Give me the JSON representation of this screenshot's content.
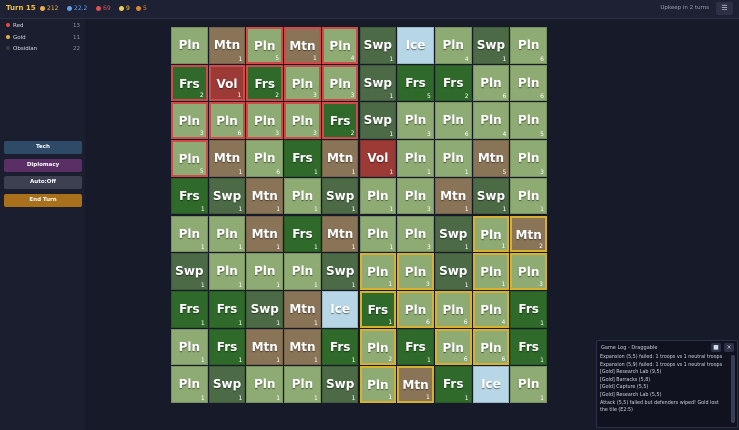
{
  "header": {
    "turn": "Turn 15",
    "resources": [
      {
        "value": "212",
        "color": "#f0b040"
      },
      {
        "value": "22.2",
        "color": "#60a0f0"
      },
      {
        "value": "69",
        "color": "#e05050"
      },
      {
        "value": "9",
        "color": "#f0d040"
      },
      {
        "value": "5",
        "color": "#e08a30"
      }
    ],
    "upkeep": "Upkeep in 2 turns"
  },
  "players": [
    {
      "name": "Red",
      "count": "13",
      "color": "#e04848"
    },
    {
      "name": "Gold",
      "count": "11",
      "color": "#e0b040"
    },
    {
      "name": "Obsidian",
      "count": "22",
      "color": "#3a3a44"
    }
  ],
  "buttons": [
    {
      "label": "Tech",
      "color": "#2f4a66"
    },
    {
      "label": "Diplomacy",
      "color": "#5a2f66"
    },
    {
      "label": "Auto:Off",
      "color": "#3c4050"
    },
    {
      "label": "End Turn",
      "color": "#a8701a"
    }
  ],
  "grid": {
    "rows": [
      [
        {
          "terrain": "Pln",
          "troops": null,
          "owner": null
        },
        {
          "terrain": "Mtn",
          "troops": "1",
          "owner": null
        },
        {
          "terrain": "Pln",
          "troops": "5",
          "owner": "red"
        },
        {
          "terrain": "Mtn",
          "troops": "1",
          "owner": "red"
        },
        {
          "terrain": "Pln",
          "troops": "4",
          "owner": "red"
        },
        {
          "terrain": "Swp",
          "troops": "1",
          "owner": null
        },
        {
          "terrain": "Ice",
          "troops": null,
          "owner": null
        },
        {
          "terrain": "Pln",
          "troops": "4",
          "owner": null
        },
        {
          "terrain": "Swp",
          "troops": "1",
          "owner": null
        },
        {
          "terrain": "Pln",
          "troops": "6",
          "owner": null
        }
      ],
      [
        {
          "terrain": "Frs",
          "troops": "2",
          "owner": "red"
        },
        {
          "terrain": "Vol",
          "troops": "1",
          "owner": "red"
        },
        {
          "terrain": "Frs",
          "troops": "2",
          "owner": "red"
        },
        {
          "terrain": "Pln",
          "troops": "3",
          "owner": "red"
        },
        {
          "terrain": "Pln",
          "troops": "3",
          "owner": "red"
        },
        {
          "terrain": "Swp",
          "troops": "1",
          "owner": null
        },
        {
          "terrain": "Frs",
          "troops": "5",
          "owner": null
        },
        {
          "terrain": "Frs",
          "troops": "2",
          "owner": null
        },
        {
          "terrain": "Pln",
          "troops": "6",
          "owner": null
        },
        {
          "terrain": "Pln",
          "troops": "6",
          "owner": null
        }
      ],
      [
        {
          "terrain": "Pln",
          "troops": "3",
          "owner": "red"
        },
        {
          "terrain": "Pln",
          "troops": "6",
          "owner": "red"
        },
        {
          "terrain": "Pln",
          "troops": "3",
          "owner": "red"
        },
        {
          "terrain": "Pln",
          "troops": "3",
          "owner": "red"
        },
        {
          "terrain": "Frs",
          "troops": "2",
          "owner": "red"
        },
        {
          "terrain": "Swp",
          "troops": "1",
          "owner": null
        },
        {
          "terrain": "Pln",
          "troops": "3",
          "owner": null
        },
        {
          "terrain": "Pln",
          "troops": "6",
          "owner": null
        },
        {
          "terrain": "Pln",
          "troops": "4",
          "owner": null
        },
        {
          "terrain": "Pln",
          "troops": "5",
          "owner": null
        }
      ],
      [
        {
          "terrain": "Pln",
          "troops": "5",
          "owner": "red"
        },
        {
          "terrain": "Mtn",
          "troops": "1",
          "owner": null
        },
        {
          "terrain": "Pln",
          "troops": "6",
          "owner": null
        },
        {
          "terrain": "Frs",
          "troops": "1",
          "owner": null
        },
        {
          "terrain": "Mtn",
          "troops": "1",
          "owner": null
        },
        {
          "terrain": "Vol",
          "troops": "1",
          "owner": null
        },
        {
          "terrain": "Pln",
          "troops": "1",
          "owner": null
        },
        {
          "terrain": "Pln",
          "troops": "1",
          "owner": null
        },
        {
          "terrain": "Mtn",
          "troops": "5",
          "owner": null
        },
        {
          "terrain": "Pln",
          "troops": "3",
          "owner": null
        }
      ],
      [
        {
          "terrain": "Frs",
          "troops": "1",
          "owner": null
        },
        {
          "terrain": "Swp",
          "troops": "1",
          "owner": null
        },
        {
          "terrain": "Mtn",
          "troops": "1",
          "owner": null
        },
        {
          "terrain": "Pln",
          "troops": "1",
          "owner": null
        },
        {
          "terrain": "Swp",
          "troops": "1",
          "owner": null
        },
        {
          "terrain": "Pln",
          "troops": "1",
          "owner": null
        },
        {
          "terrain": "Pln",
          "troops": "3",
          "owner": null
        },
        {
          "terrain": "Mtn",
          "troops": "1",
          "owner": null
        },
        {
          "terrain": "Swp",
          "troops": "1",
          "owner": null
        },
        {
          "terrain": "Pln",
          "troops": "1",
          "owner": null
        }
      ],
      [
        {
          "terrain": "Pln",
          "troops": "1",
          "owner": null
        },
        {
          "terrain": "Pln",
          "troops": "1",
          "owner": null
        },
        {
          "terrain": "Mtn",
          "troops": "1",
          "owner": null
        },
        {
          "terrain": "Frs",
          "troops": "1",
          "owner": null
        },
        {
          "terrain": "Mtn",
          "troops": "1",
          "owner": null
        },
        {
          "terrain": "Pln",
          "troops": "1",
          "owner": null
        },
        {
          "terrain": "Pln",
          "troops": "3",
          "owner": null
        },
        {
          "terrain": "Swp",
          "troops": "1",
          "owner": null
        },
        {
          "terrain": "Pln",
          "troops": "1",
          "owner": "gold"
        },
        {
          "terrain": "Mtn",
          "troops": "2",
          "owner": "gold"
        }
      ],
      [
        {
          "terrain": "Swp",
          "troops": "1",
          "owner": null
        },
        {
          "terrain": "Pln",
          "troops": "1",
          "owner": null
        },
        {
          "terrain": "Pln",
          "troops": "1",
          "owner": null
        },
        {
          "terrain": "Pln",
          "troops": "1",
          "owner": null
        },
        {
          "terrain": "Swp",
          "troops": "1",
          "owner": null
        },
        {
          "terrain": "Pln",
          "troops": "1",
          "owner": "gold"
        },
        {
          "terrain": "Pln",
          "troops": "3",
          "owner": "gold"
        },
        {
          "terrain": "Swp",
          "troops": "1",
          "owner": null
        },
        {
          "terrain": "Pln",
          "troops": "1",
          "owner": "gold"
        },
        {
          "terrain": "Pln",
          "troops": "3",
          "owner": "gold"
        }
      ],
      [
        {
          "terrain": "Frs",
          "troops": "1",
          "owner": null
        },
        {
          "terrain": "Frs",
          "troops": "1",
          "owner": null
        },
        {
          "terrain": "Swp",
          "troops": "1",
          "owner": null
        },
        {
          "terrain": "Mtn",
          "troops": "1",
          "owner": null
        },
        {
          "terrain": "Ice",
          "troops": null,
          "owner": null
        },
        {
          "terrain": "Frs",
          "troops": "1",
          "owner": "gold"
        },
        {
          "terrain": "Pln",
          "troops": "6",
          "owner": "gold"
        },
        {
          "terrain": "Pln",
          "troops": "6",
          "owner": "gold"
        },
        {
          "terrain": "Pln",
          "troops": "4",
          "owner": "gold"
        },
        {
          "terrain": "Frs",
          "troops": "1",
          "owner": null
        }
      ],
      [
        {
          "terrain": "Pln",
          "troops": "1",
          "owner": null
        },
        {
          "terrain": "Frs",
          "troops": "1",
          "owner": null
        },
        {
          "terrain": "Mtn",
          "troops": "1",
          "owner": null
        },
        {
          "terrain": "Mtn",
          "troops": "1",
          "owner": null
        },
        {
          "terrain": "Frs",
          "troops": "1",
          "owner": null
        },
        {
          "terrain": "Pln",
          "troops": "2",
          "owner": "gold"
        },
        {
          "terrain": "Frs",
          "troops": "1",
          "owner": null
        },
        {
          "terrain": "Pln",
          "troops": "6",
          "owner": "gold"
        },
        {
          "terrain": "Pln",
          "troops": "6",
          "owner": "gold"
        },
        {
          "terrain": "Frs",
          "troops": "1",
          "owner": null
        }
      ],
      [
        {
          "terrain": "Pln",
          "troops": "1",
          "owner": null
        },
        {
          "terrain": "Swp",
          "troops": "1",
          "owner": null
        },
        {
          "terrain": "Pln",
          "troops": "1",
          "owner": null
        },
        {
          "terrain": "Pln",
          "troops": "1",
          "owner": null
        },
        {
          "terrain": "Swp",
          "troops": "1",
          "owner": null
        },
        {
          "terrain": "Pln",
          "troops": "1",
          "owner": "gold"
        },
        {
          "terrain": "Mtn",
          "troops": "1",
          "owner": "gold"
        },
        {
          "terrain": "Frs",
          "troops": "1",
          "owner": null
        },
        {
          "terrain": "Ice",
          "troops": null,
          "owner": null
        },
        {
          "terrain": "Pln",
          "troops": "1",
          "owner": null
        }
      ]
    ]
  },
  "log": {
    "title": "Game Log - Draggable",
    "entries": [
      "Expansion (5,5) failed: 1 troops vs 1 neutral troops",
      "Expansion (5,9) failed: 1 troops vs 1 neutral troops",
      "[Gold] Research Lab (9,5)",
      "[Gold] Barracks (5,8)",
      "[Gold] Capture (5,5)",
      "[Gold] Research Lab (5,5)",
      "Attack (5,5) failed but defenders wiped! Gold lost the tile (E2:5)"
    ]
  }
}
